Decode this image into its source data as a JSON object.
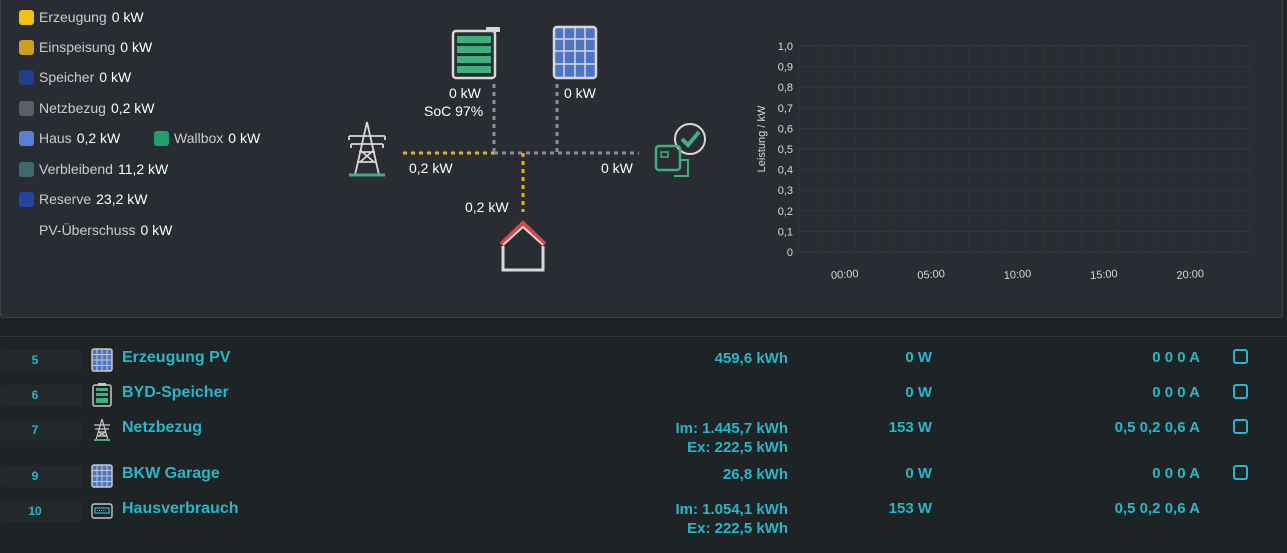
{
  "legend": {
    "erzeugung": {
      "label": "Erzeugung",
      "value": "0 kW",
      "color": "#f2c010"
    },
    "einspeisung": {
      "label": "Einspeisung",
      "value": "0 kW",
      "color": "#c9a21b"
    },
    "speicher": {
      "label": "Speicher",
      "value": "0 kW",
      "color": "#233d86"
    },
    "netzbezug": {
      "label": "Netzbezug",
      "value": "0,2 kW",
      "color": "#5c5f66"
    },
    "haus": {
      "label": "Haus",
      "value": "0,2 kW",
      "color": "#5a7fcf"
    },
    "wallbox": {
      "label": "Wallbox",
      "value": "0 kW",
      "color": "#1f9e6e"
    },
    "verbleibend": {
      "label": "Verbleibend",
      "value": "11,2 kW",
      "color": "#3d6b6c"
    },
    "reserve": {
      "label": "Reserve",
      "value": "23,2 kW",
      "color": "#2544a0"
    },
    "pv_ueberschuss": {
      "label": "PV-Überschuss",
      "value": "0 kW"
    }
  },
  "flow": {
    "battery_power": "0 kW",
    "battery_soc": "SoC 97%",
    "pv_power": "0 kW",
    "grid_power": "0,2 kW",
    "wallbox_power": "0 kW",
    "house_power": "0,2 kW"
  },
  "chart_data": {
    "type": "line",
    "ylabel": "Leistung / kW",
    "ylim": [
      0,
      1
    ],
    "yticks": [
      "1,0",
      "0,9",
      "0,8",
      "0,7",
      "0,6",
      "0,5",
      "0,4",
      "0,3",
      "0,2",
      "0,1",
      "0"
    ],
    "xticks": [
      "00:00",
      "05:00",
      "10:00",
      "15:00",
      "20:00"
    ],
    "series": [],
    "grid": true
  },
  "table": {
    "rows": [
      {
        "idx": "5",
        "icon": "solar-panel-icon",
        "name": "Erzeugung PV",
        "energy": [
          "459,6 kWh"
        ],
        "power": "0 W",
        "amps": "0 0 0 A",
        "checkbox": true
      },
      {
        "idx": "6",
        "icon": "battery-storage-icon",
        "name": "BYD-Speicher",
        "energy": [],
        "power": "0 W",
        "amps": "0 0 0 A",
        "checkbox": true
      },
      {
        "idx": "7",
        "icon": "power-tower-icon",
        "name": "Netzbezug",
        "energy": [
          "Im: 1.445,7 kWh",
          "Ex: 222,5 kWh"
        ],
        "power": "153 W",
        "amps": "0,5 0,2 0,6 A",
        "checkbox": true
      },
      {
        "idx": "9",
        "icon": "solar-panel-icon",
        "name": "BKW Garage",
        "energy": [
          "26,8 kWh"
        ],
        "power": "0 W",
        "amps": "0 0 0 A",
        "checkbox": true
      },
      {
        "idx": "10",
        "icon": "meter-icon",
        "name": "Hausverbrauch",
        "energy": [
          "Im: 1.054,1 kWh",
          "Ex: 222,5 kWh"
        ],
        "power": "153 W",
        "amps": "0,5 0,2 0,6 A",
        "checkbox": false
      }
    ]
  }
}
